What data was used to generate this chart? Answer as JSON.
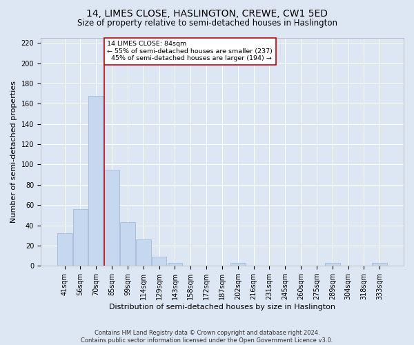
{
  "title": "14, LIMES CLOSE, HASLINGTON, CREWE, CW1 5ED",
  "subtitle": "Size of property relative to semi-detached houses in Haslington",
  "xlabel": "Distribution of semi-detached houses by size in Haslington",
  "ylabel": "Number of semi-detached properties",
  "categories": [
    "41sqm",
    "56sqm",
    "70sqm",
    "85sqm",
    "99sqm",
    "114sqm",
    "129sqm",
    "143sqm",
    "158sqm",
    "172sqm",
    "187sqm",
    "202sqm",
    "216sqm",
    "231sqm",
    "245sqm",
    "260sqm",
    "275sqm",
    "289sqm",
    "304sqm",
    "318sqm",
    "333sqm"
  ],
  "values": [
    32,
    56,
    168,
    95,
    43,
    26,
    9,
    3,
    0,
    0,
    0,
    3,
    0,
    0,
    0,
    0,
    0,
    3,
    0,
    0,
    3
  ],
  "bar_color": "#c5d8f0",
  "bar_edge_color": "#9ab5d5",
  "property_line_color": "#cc0000",
  "annotation_text": "14 LIMES CLOSE: 84sqm\n← 55% of semi-detached houses are smaller (237)\n  45% of semi-detached houses are larger (194) →",
  "annotation_box_facecolor": "#ffffff",
  "annotation_box_edgecolor": "#cc0000",
  "ylim": [
    0,
    225
  ],
  "yticks": [
    0,
    20,
    40,
    60,
    80,
    100,
    120,
    140,
    160,
    180,
    200,
    220
  ],
  "background_color": "#dde6f3",
  "plot_background_color": "#dde6f3",
  "grid_color": "#ffffff",
  "footer_line1": "Contains HM Land Registry data © Crown copyright and database right 2024.",
  "footer_line2": "Contains public sector information licensed under the Open Government Licence v3.0.",
  "title_fontsize": 10,
  "subtitle_fontsize": 8.5,
  "axis_label_fontsize": 8,
  "tick_fontsize": 7,
  "footer_fontsize": 6
}
